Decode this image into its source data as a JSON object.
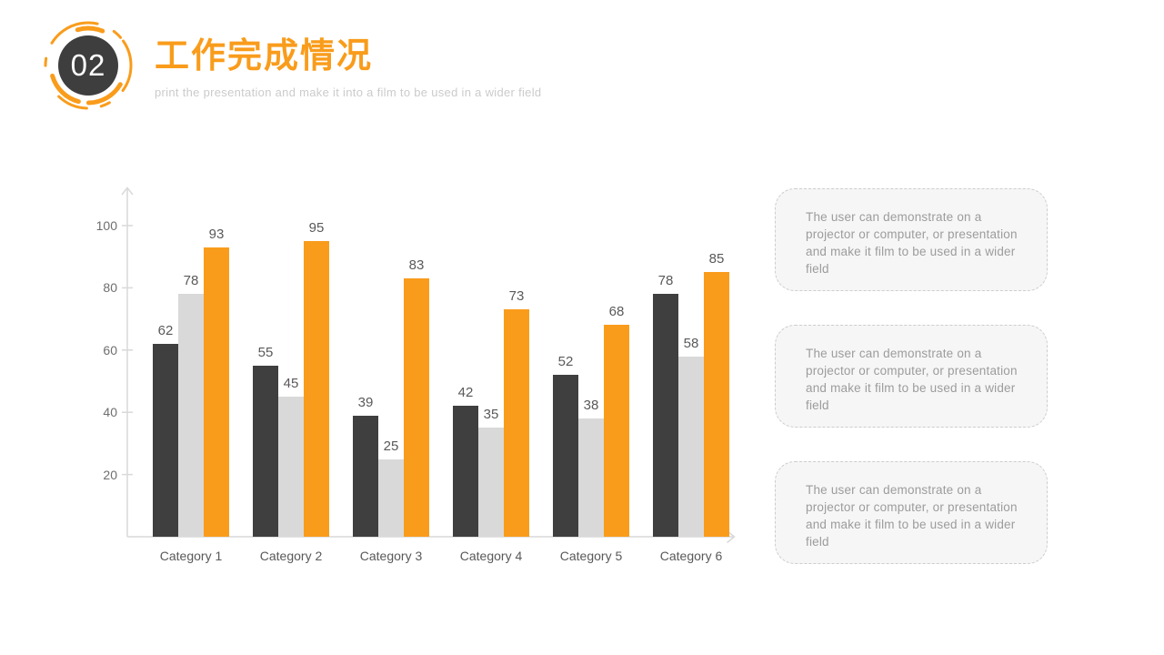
{
  "header": {
    "section_number": "02",
    "title": "工作完成情况",
    "subtitle": "print the presentation and make it into a film to be used in a wider field"
  },
  "chart_data": {
    "type": "bar",
    "title": "",
    "xlabel": "",
    "ylabel": "",
    "categories": [
      "Category 1",
      "Category 2",
      "Category 3",
      "Category 4",
      "Category 5",
      "Category 6"
    ],
    "series": [
      {
        "name": "dark",
        "color": "#3F3F3F",
        "values": [
          62,
          55,
          39,
          42,
          52,
          78
        ]
      },
      {
        "name": "light",
        "color": "#D9D9D9",
        "values": [
          78,
          45,
          25,
          35,
          38,
          58
        ]
      },
      {
        "name": "orange",
        "color": "#F99C1B",
        "values": [
          93,
          95,
          83,
          73,
          68,
          85
        ]
      }
    ],
    "ylim": [
      0,
      110
    ],
    "yticks": [
      20,
      40,
      60,
      80,
      100
    ],
    "grid": false,
    "legend_position": "none",
    "value_labels": true
  },
  "notes": [
    {
      "text": "The user can demonstrate on a projector or computer, or presentation and make it film to be used in a wider field"
    },
    {
      "text": "The user can demonstrate on a projector or computer, or presentation and make it film to be used in a wider field"
    },
    {
      "text": "The user can demonstrate on a projector or computer, or presentation and make it film to be used in a wider field"
    }
  ],
  "colors": {
    "accent_orange": "#F99C1B",
    "bar_dark": "#3F3F3F",
    "bar_light": "#D9D9D9",
    "axis_line": "#D9D9D9",
    "value_label": "#595959",
    "tick_label": "#6E6E6E",
    "note_text": "#9C9C9C",
    "badge_fill": "#3E3E3E"
  }
}
